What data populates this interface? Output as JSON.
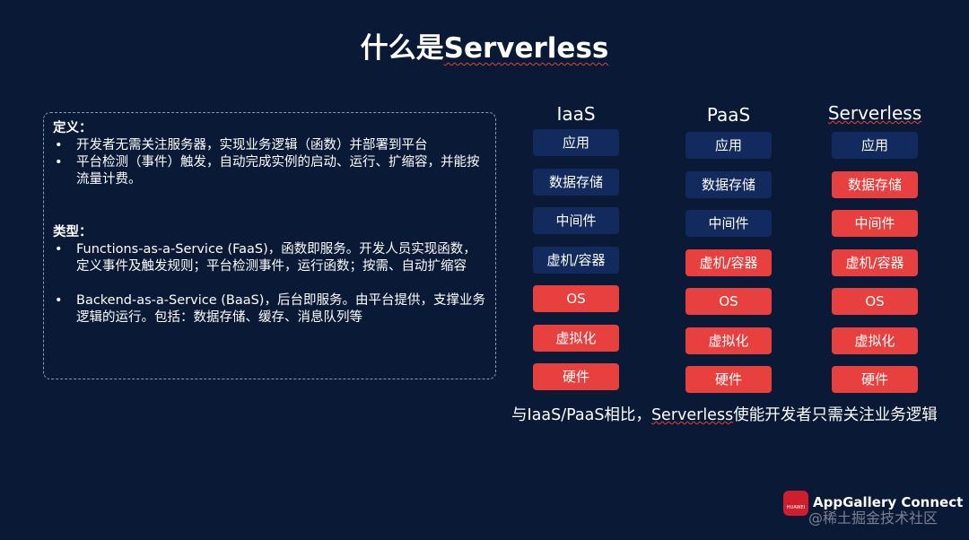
{
  "title": {
    "pre": "什么是",
    "word": "Serverless"
  },
  "definition": {
    "heading": "定义：",
    "items": [
      "开发者无需关注服务器，实现业务逻辑（函数）并部署到平台",
      "平台检测（事件）触发，自动完成实例的启动、运行、扩缩容，并能按流量计费。"
    ]
  },
  "types": {
    "heading": "类型：",
    "items": [
      "Functions-as-a-Service (FaaS)，函数即服务。开发人员实现函数，定义事件及触发规则；平台检测事件，运行函数；按需、自动扩缩容",
      "Backend-as-a-Service (BaaS)，后台即服务。由平台提供，支撑业务逻辑的运行。包括：数据存储、缓存、消息队列等"
    ]
  },
  "colors": {
    "background": "#0a1935",
    "user_managed": "#122a5e",
    "platform_managed": "#e8403e"
  },
  "columns": [
    {
      "name": "IaaS",
      "layers": [
        {
          "label": "应用",
          "platform": false
        },
        {
          "label": "数据存储",
          "platform": false
        },
        {
          "label": "中间件",
          "platform": false
        },
        {
          "label": "虚机/容器",
          "platform": false
        },
        {
          "label": "OS",
          "platform": true
        },
        {
          "label": "虚拟化",
          "platform": true
        },
        {
          "label": "硬件",
          "platform": true
        }
      ]
    },
    {
      "name": "PaaS",
      "layers": [
        {
          "label": "应用",
          "platform": false
        },
        {
          "label": "数据存储",
          "platform": false
        },
        {
          "label": "中间件",
          "platform": false
        },
        {
          "label": "虚机/容器",
          "platform": true
        },
        {
          "label": "OS",
          "platform": true
        },
        {
          "label": "虚拟化",
          "platform": true
        },
        {
          "label": "硬件",
          "platform": true
        }
      ]
    },
    {
      "name": "Serverless",
      "layers": [
        {
          "label": "应用",
          "platform": false
        },
        {
          "label": "数据存储",
          "platform": true
        },
        {
          "label": "中间件",
          "platform": true
        },
        {
          "label": "虚机/容器",
          "platform": true
        },
        {
          "label": "OS",
          "platform": true
        },
        {
          "label": "虚拟化",
          "platform": true
        },
        {
          "label": "硬件",
          "platform": true
        }
      ]
    }
  ],
  "summary": {
    "pre": "与IaaS/PaaS相比，",
    "word": "Serverless",
    "post": "使能开发者只需关注业务逻辑"
  },
  "footer": {
    "logo_text": "HUAWEI",
    "brand": "AppGallery Connect",
    "watermark": "@稀土掘金技术社区"
  }
}
